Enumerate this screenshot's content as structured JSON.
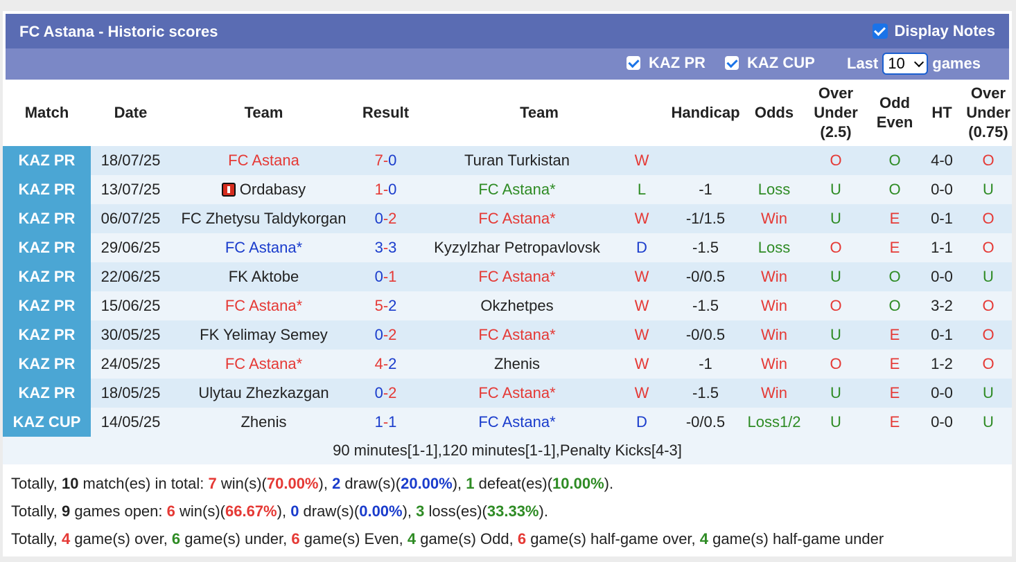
{
  "title": "FC Astana - Historic scores",
  "display_notes": "Display Notes",
  "filters": {
    "kaz_pr": "KAZ PR",
    "kaz_cup": "KAZ CUP",
    "last": "Last",
    "games_value": "10",
    "games": "games"
  },
  "headers": {
    "match": "Match",
    "date": "Date",
    "team1": "Team",
    "result": "Result",
    "team2": "Team",
    "handicap": "Handicap",
    "odds": "Odds",
    "ou": "Over Under (2.5)",
    "oe": "Odd Even",
    "ht": "HT",
    "ou2": "Over Under (0.75)"
  },
  "rows": [
    {
      "league": "KAZ PR",
      "date": "18/07/25",
      "home": "FC Astana",
      "home_c": "red",
      "home_star": false,
      "flag": false,
      "sh": "7",
      "sa": "0",
      "sh_c": "red",
      "sa_c": "blue",
      "away": "Turan Turkistan",
      "away_c": "dark",
      "away_star": false,
      "wl": "W",
      "wl_c": "red",
      "hcp": "",
      "odds": "",
      "odds_c": "",
      "ou": "O",
      "ou_c": "red",
      "oe": "O",
      "oe_c": "green",
      "ht": "4-0",
      "ou2": "O",
      "ou2_c": "red"
    },
    {
      "league": "KAZ PR",
      "date": "13/07/25",
      "home": "Ordabasy",
      "home_c": "dark",
      "home_star": false,
      "flag": true,
      "sh": "1",
      "sa": "0",
      "sh_c": "red",
      "sa_c": "blue",
      "away": "FC Astana",
      "away_c": "green",
      "away_star": true,
      "wl": "L",
      "wl_c": "green",
      "hcp": "-1",
      "odds": "Loss",
      "odds_c": "green",
      "ou": "U",
      "ou_c": "green",
      "oe": "O",
      "oe_c": "green",
      "ht": "0-0",
      "ou2": "U",
      "ou2_c": "green"
    },
    {
      "league": "KAZ PR",
      "date": "06/07/25",
      "home": "FC Zhetysu Taldykorgan",
      "home_c": "dark",
      "home_star": false,
      "flag": false,
      "sh": "0",
      "sa": "2",
      "sh_c": "blue",
      "sa_c": "red",
      "away": "FC Astana",
      "away_c": "red",
      "away_star": true,
      "wl": "W",
      "wl_c": "red",
      "hcp": "-1/1.5",
      "odds": "Win",
      "odds_c": "red",
      "ou": "U",
      "ou_c": "green",
      "oe": "E",
      "oe_c": "red",
      "ht": "0-1",
      "ou2": "O",
      "ou2_c": "red"
    },
    {
      "league": "KAZ PR",
      "date": "29/06/25",
      "home": "FC Astana",
      "home_c": "blue",
      "home_star": true,
      "flag": false,
      "sh": "3",
      "sa": "3",
      "sh_c": "blue",
      "sa_c": "blue",
      "away": "Kyzylzhar Petropavlovsk",
      "away_c": "dark",
      "away_star": false,
      "wl": "D",
      "wl_c": "blue",
      "hcp": "-1.5",
      "odds": "Loss",
      "odds_c": "green",
      "ou": "O",
      "ou_c": "red",
      "oe": "E",
      "oe_c": "red",
      "ht": "1-1",
      "ou2": "O",
      "ou2_c": "red"
    },
    {
      "league": "KAZ PR",
      "date": "22/06/25",
      "home": "FK Aktobe",
      "home_c": "dark",
      "home_star": false,
      "flag": false,
      "sh": "0",
      "sa": "1",
      "sh_c": "blue",
      "sa_c": "red",
      "away": "FC Astana",
      "away_c": "red",
      "away_star": true,
      "wl": "W",
      "wl_c": "red",
      "hcp": "-0/0.5",
      "odds": "Win",
      "odds_c": "red",
      "ou": "U",
      "ou_c": "green",
      "oe": "O",
      "oe_c": "green",
      "ht": "0-0",
      "ou2": "U",
      "ou2_c": "green"
    },
    {
      "league": "KAZ PR",
      "date": "15/06/25",
      "home": "FC Astana",
      "home_c": "red",
      "home_star": true,
      "flag": false,
      "sh": "5",
      "sa": "2",
      "sh_c": "red",
      "sa_c": "blue",
      "away": "Okzhetpes",
      "away_c": "dark",
      "away_star": false,
      "wl": "W",
      "wl_c": "red",
      "hcp": "-1.5",
      "odds": "Win",
      "odds_c": "red",
      "ou": "O",
      "ou_c": "red",
      "oe": "O",
      "oe_c": "green",
      "ht": "3-2",
      "ou2": "O",
      "ou2_c": "red"
    },
    {
      "league": "KAZ PR",
      "date": "30/05/25",
      "home": "FK Yelimay Semey",
      "home_c": "dark",
      "home_star": false,
      "flag": false,
      "sh": "0",
      "sa": "2",
      "sh_c": "blue",
      "sa_c": "red",
      "away": "FC Astana",
      "away_c": "red",
      "away_star": true,
      "wl": "W",
      "wl_c": "red",
      "hcp": "-0/0.5",
      "odds": "Win",
      "odds_c": "red",
      "ou": "U",
      "ou_c": "green",
      "oe": "E",
      "oe_c": "red",
      "ht": "0-1",
      "ou2": "O",
      "ou2_c": "red"
    },
    {
      "league": "KAZ PR",
      "date": "24/05/25",
      "home": "FC Astana",
      "home_c": "red",
      "home_star": true,
      "flag": false,
      "sh": "4",
      "sa": "2",
      "sh_c": "red",
      "sa_c": "blue",
      "away": "Zhenis",
      "away_c": "dark",
      "away_star": false,
      "wl": "W",
      "wl_c": "red",
      "hcp": "-1",
      "odds": "Win",
      "odds_c": "red",
      "ou": "O",
      "ou_c": "red",
      "oe": "E",
      "oe_c": "red",
      "ht": "1-2",
      "ou2": "O",
      "ou2_c": "red"
    },
    {
      "league": "KAZ PR",
      "date": "18/05/25",
      "home": "Ulytau Zhezkazgan",
      "home_c": "dark",
      "home_star": false,
      "flag": false,
      "sh": "0",
      "sa": "2",
      "sh_c": "blue",
      "sa_c": "red",
      "away": "FC Astana",
      "away_c": "red",
      "away_star": true,
      "wl": "W",
      "wl_c": "red",
      "hcp": "-1.5",
      "odds": "Win",
      "odds_c": "red",
      "ou": "U",
      "ou_c": "green",
      "oe": "E",
      "oe_c": "red",
      "ht": "0-0",
      "ou2": "U",
      "ou2_c": "green"
    },
    {
      "league": "KAZ CUP",
      "date": "14/05/25",
      "home": "Zhenis",
      "home_c": "dark",
      "home_star": false,
      "flag": false,
      "sh": "1",
      "sa": "1",
      "sh_c": "blue",
      "sa_c": "blue",
      "away": "FC Astana",
      "away_c": "blue",
      "away_star": true,
      "wl": "D",
      "wl_c": "blue",
      "hcp": "-0/0.5",
      "odds": "Loss1/2",
      "odds_c": "green",
      "ou": "U",
      "ou_c": "green",
      "oe": "E",
      "oe_c": "red",
      "ht": "0-0",
      "ou2": "U",
      "ou2_c": "green"
    }
  ],
  "note": "90 minutes[1-1],120 minutes[1-1],Penalty Kicks[4-3]",
  "summary": {
    "line1": {
      "a": "Totally, ",
      "n": "10",
      "b": " match(es) in total: ",
      "w": "7",
      "c": " win(s)(",
      "wp": "70.00%",
      "d": "), ",
      "dr": "2",
      "e": " draw(s)(",
      "dp": "20.00%",
      "f": "), ",
      "l": "1",
      "g": " defeat(es)(",
      "lp": "10.00%",
      "h": ")."
    },
    "line2": {
      "a": "Totally, ",
      "n": "9",
      "b": " games open: ",
      "w": "6",
      "c": " win(s)(",
      "wp": "66.67%",
      "d": "), ",
      "dr": "0",
      "e": " draw(s)(",
      "dp": "0.00%",
      "f": "), ",
      "l": "3",
      "g": " loss(es)(",
      "lp": "33.33%",
      "h": ")."
    },
    "line3": {
      "a": "Totally, ",
      "o": "4",
      "b": " game(s) over, ",
      "u": "6",
      "c": " game(s) under, ",
      "ev": "6",
      "d": " game(s) Even, ",
      "od": "4",
      "e": " game(s) Odd, ",
      "hgo": "6",
      "f": " game(s) half-game over, ",
      "hgu": "4",
      "g": " game(s) half-game under"
    }
  },
  "colors": {
    "title_bg": "#5a6cb3",
    "filter_bg": "#7b88c6",
    "league_bg": "#4ba6d4",
    "row_a": "#dcebf7",
    "row_b": "#edf4fa",
    "red": "#e53935",
    "blue": "#1a3ccc",
    "green": "#2e8b24"
  }
}
